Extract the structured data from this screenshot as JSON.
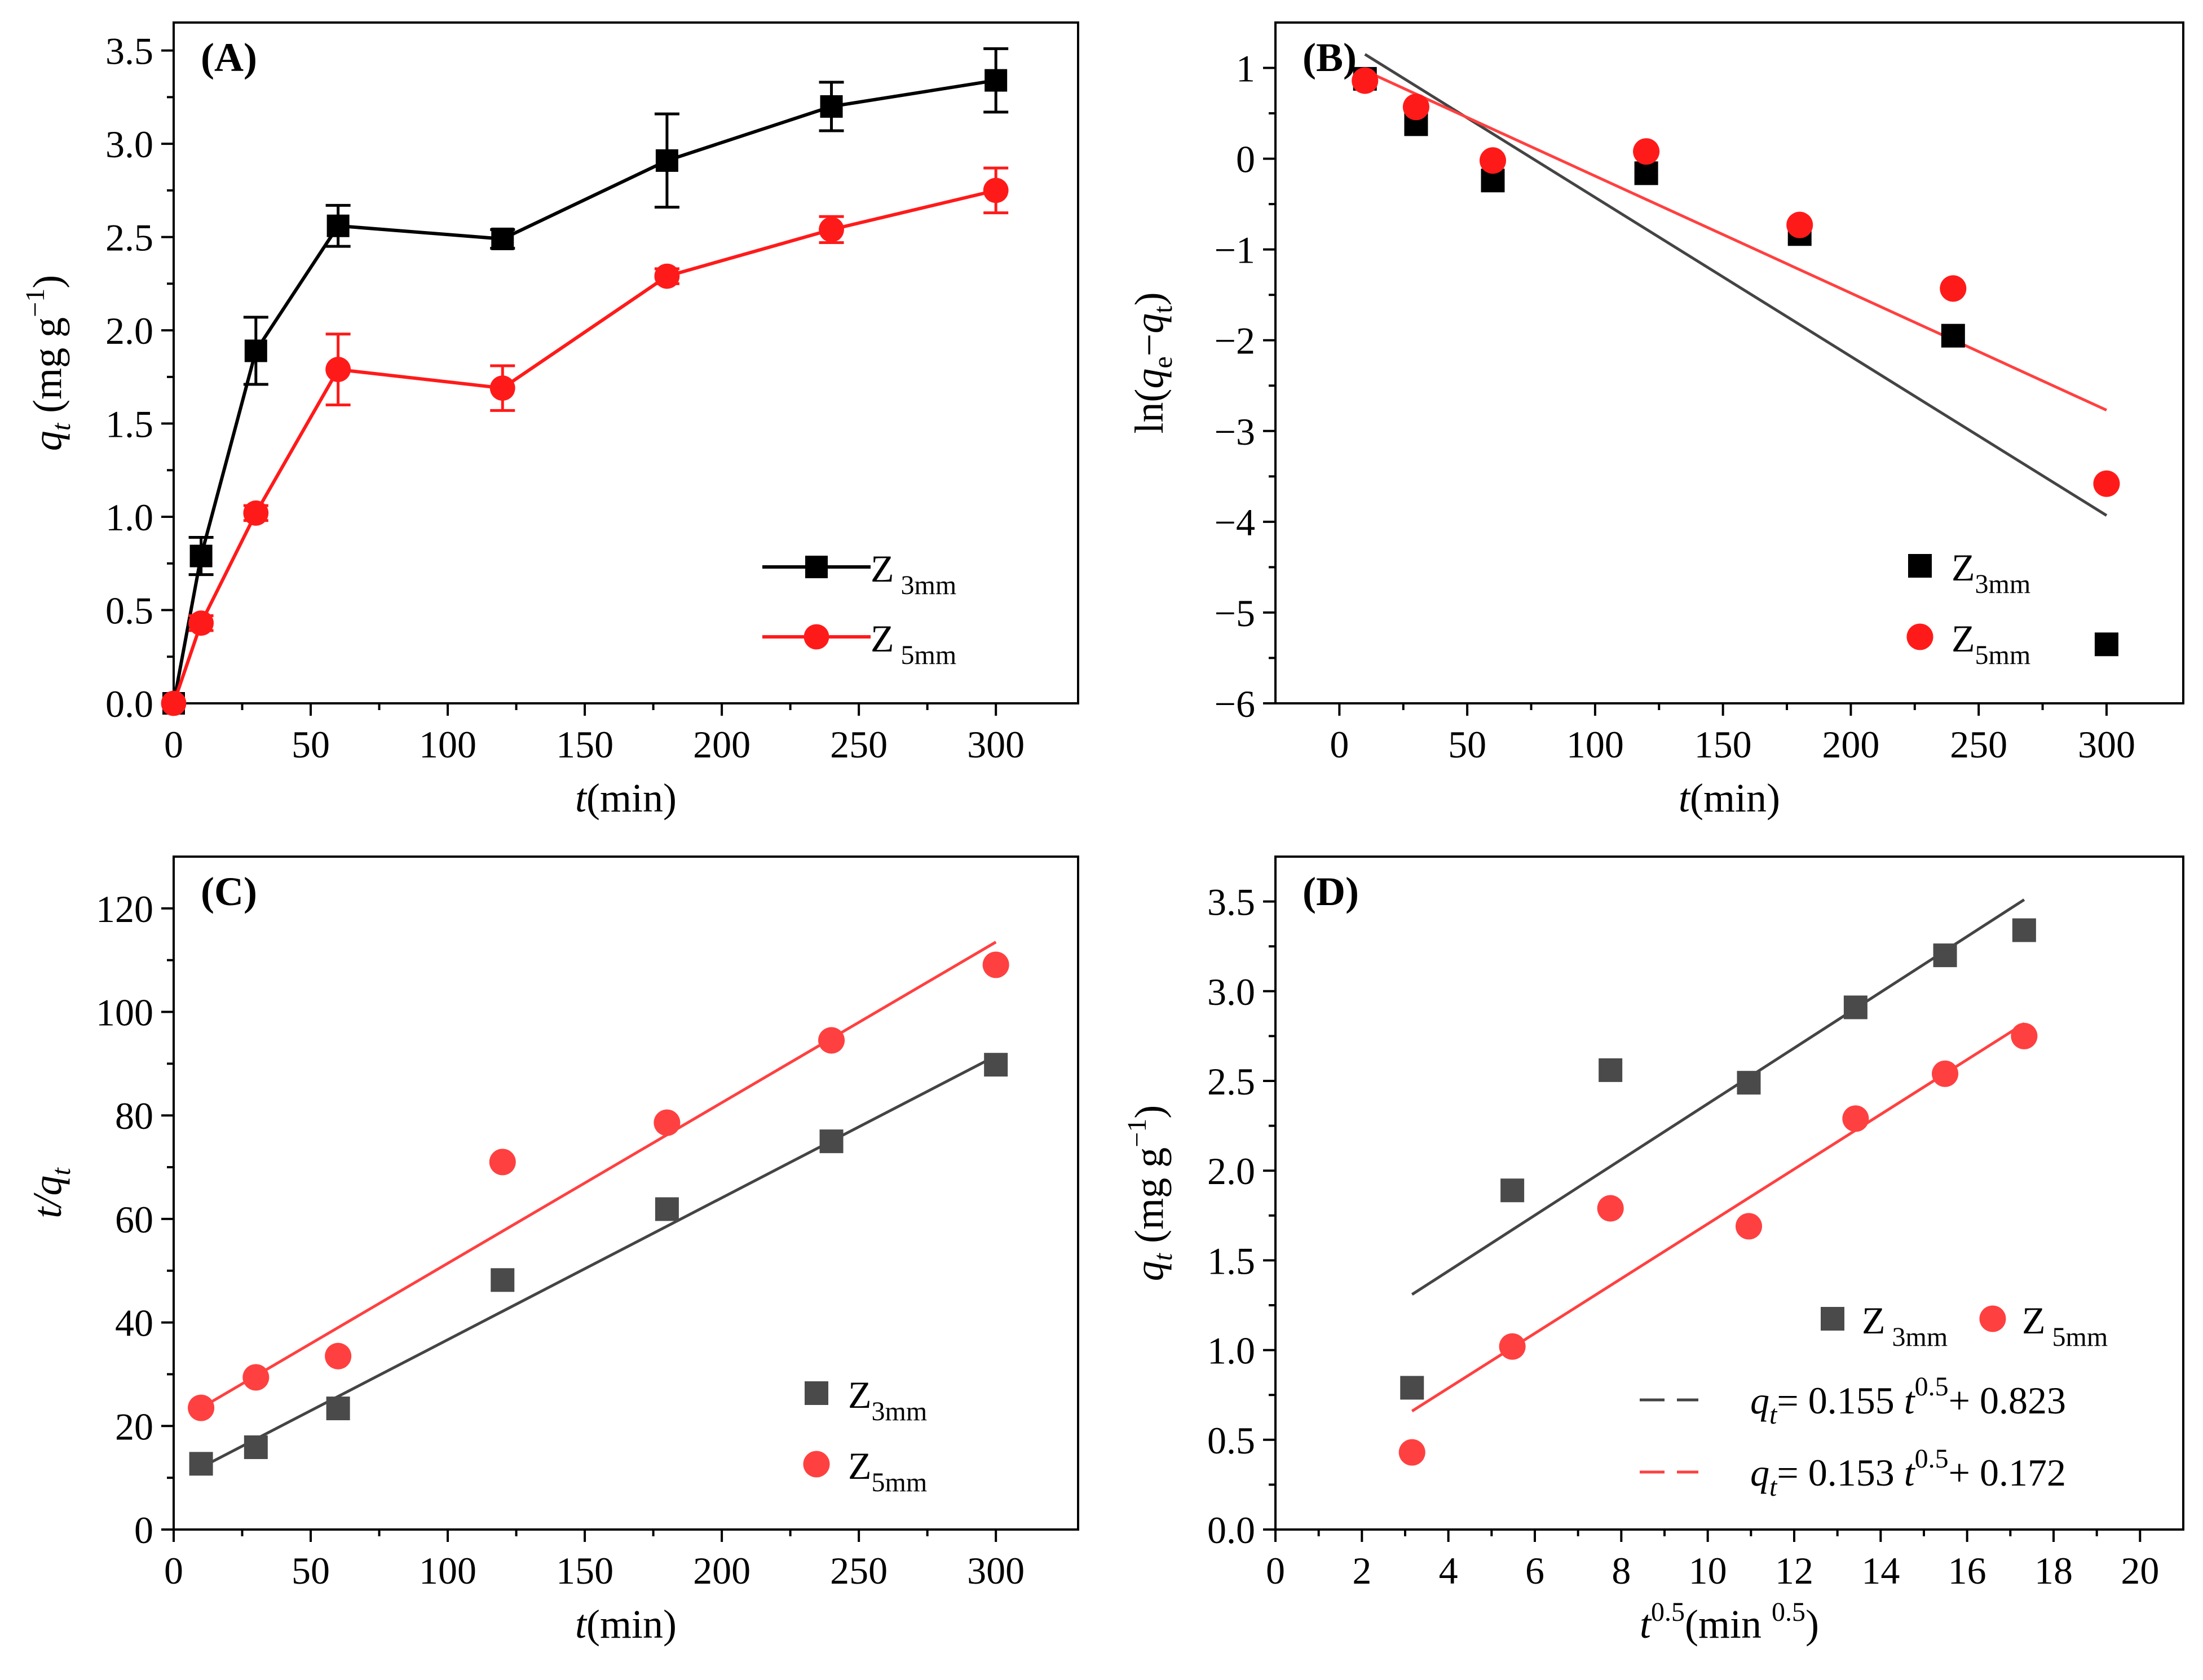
{
  "colors": {
    "black": "#000000",
    "dark": "#444444",
    "red": "#ff1a1a",
    "redLine": "#ff4040",
    "grayMarker": "#4a4a4a"
  },
  "chart_data": [
    {
      "id": "A",
      "panel_label": "(A)",
      "type": "line",
      "xlabel": {
        "italic": "t",
        "rest": "(min)"
      },
      "ylabel": {
        "italic": "q",
        "sub": "t",
        "rest": " (mg g",
        "sup": "−1",
        "close": ")"
      },
      "xlim": [
        0,
        330
      ],
      "ylim": [
        0,
        3.65
      ],
      "xticks": [
        0,
        50,
        100,
        150,
        200,
        250,
        300
      ],
      "xtick_labels": [
        "0",
        "50",
        "100",
        "150",
        "200",
        "250",
        "300"
      ],
      "yticks": [
        0,
        0.5,
        1.0,
        1.5,
        2.0,
        2.5,
        3.0,
        3.5
      ],
      "ytick_labels": [
        "0.0",
        "0.5",
        "1.0",
        "1.5",
        "2.0",
        "2.5",
        "3.0",
        "3.5"
      ],
      "series": [
        {
          "name": "Z 3mm",
          "legend_main": "Z",
          "legend_sub": " 3mm",
          "marker": "square",
          "color": "#000000",
          "connect": true,
          "x": [
            0,
            10,
            30,
            60,
            120,
            180,
            240,
            300
          ],
          "y": [
            0,
            0.79,
            1.89,
            2.56,
            2.49,
            2.91,
            3.2,
            3.34
          ],
          "err": [
            0,
            0.1,
            0.18,
            0.11,
            0.05,
            0.25,
            0.13,
            0.17
          ]
        },
        {
          "name": "Z 5mm",
          "legend_main": "Z",
          "legend_sub": " 5mm",
          "marker": "circle",
          "color": "#ff1a1a",
          "connect": true,
          "x": [
            0,
            10,
            30,
            60,
            120,
            180,
            240,
            300
          ],
          "y": [
            0,
            0.43,
            1.02,
            1.79,
            1.69,
            2.29,
            2.54,
            2.75
          ],
          "err": [
            0,
            0.04,
            0.04,
            0.19,
            0.12,
            0.04,
            0.07,
            0.12
          ]
        }
      ],
      "legend": {
        "position": "bottom-right",
        "with_line": true
      }
    },
    {
      "id": "B",
      "panel_label": "(B)",
      "type": "scatter",
      "xlabel": {
        "italic": "t",
        "rest": "(min)"
      },
      "ylabel": {
        "ln": "ln(",
        "q1": "q",
        "sub1": "e",
        "mid": "−",
        "q2": "q",
        "sub2": "t",
        "close": ")"
      },
      "xlim": [
        -25,
        330
      ],
      "ylim": [
        -6,
        1.5
      ],
      "xticks": [
        0,
        50,
        100,
        150,
        200,
        250,
        300
      ],
      "xtick_labels": [
        "0",
        "50",
        "100",
        "150",
        "200",
        "250",
        "300"
      ],
      "yticks": [
        -6,
        -5,
        -4,
        -3,
        -2,
        -1,
        0,
        1
      ],
      "ytick_labels": [
        "−6",
        "−5",
        "−4",
        "−3",
        "−2",
        "−1",
        "0",
        "1"
      ],
      "series": [
        {
          "name": "Z3mm",
          "legend_main": "Z",
          "legend_sub": "3mm",
          "marker": "square",
          "color": "#000000",
          "x": [
            10,
            30,
            60,
            120,
            180,
            240,
            300
          ],
          "y": [
            0.88,
            0.38,
            -0.24,
            -0.16,
            -0.83,
            -1.95,
            -5.35
          ],
          "fit": {
            "x": [
              10,
              300
            ],
            "y": [
              1.15,
              -3.93
            ],
            "color": "#444444"
          }
        },
        {
          "name": "Z5mm",
          "legend_main": "Z",
          "legend_sub": "5mm",
          "marker": "circle",
          "color": "#ff1a1a",
          "x": [
            10,
            30,
            60,
            120,
            180,
            240,
            300
          ],
          "y": [
            0.86,
            0.57,
            -0.02,
            0.08,
            -0.73,
            -1.43,
            -3.58
          ],
          "fit": {
            "x": [
              10,
              300
            ],
            "y": [
              0.97,
              -2.77
            ],
            "color": "#ff4040"
          }
        }
      ],
      "legend": {
        "position": "bottom-right",
        "with_line": false
      }
    },
    {
      "id": "C",
      "panel_label": "(C)",
      "type": "scatter",
      "xlabel": {
        "italic": "t",
        "rest": "(min)"
      },
      "ylabel": {
        "pre": "t/",
        "q": "q",
        "sub": "t"
      },
      "xlim": [
        0,
        330
      ],
      "ylim": [
        0,
        130
      ],
      "xticks": [
        0,
        50,
        100,
        150,
        200,
        250,
        300
      ],
      "xtick_labels": [
        "0",
        "50",
        "100",
        "150",
        "200",
        "250",
        "300"
      ],
      "yticks": [
        0,
        20,
        40,
        60,
        80,
        100,
        120
      ],
      "ytick_labels": [
        "0",
        "20",
        "40",
        "60",
        "80",
        "100",
        "120"
      ],
      "series": [
        {
          "name": "Z3mm",
          "legend_main": "Z",
          "legend_sub": "3mm",
          "marker": "square",
          "color": "#4a4a4a",
          "x": [
            10,
            30,
            60,
            120,
            180,
            240,
            300
          ],
          "y": [
            12.7,
            15.9,
            23.4,
            48.2,
            61.9,
            75.0,
            89.8
          ],
          "fit": {
            "x": [
              10,
              300
            ],
            "y": [
              12.0,
              91.5
            ],
            "color": "#444444"
          }
        },
        {
          "name": "Z5mm",
          "legend_main": "Z",
          "legend_sub": "5mm",
          "marker": "circle",
          "color": "#ff4040",
          "x": [
            10,
            30,
            60,
            120,
            180,
            240,
            300
          ],
          "y": [
            23.5,
            29.4,
            33.5,
            71.0,
            78.6,
            94.5,
            109.1
          ],
          "fit": {
            "x": [
              10,
              300
            ],
            "y": [
              23.5,
              113.5
            ],
            "color": "#ff4040"
          }
        }
      ],
      "legend": {
        "position": "bottom-right",
        "with_line": false
      }
    },
    {
      "id": "D",
      "panel_label": "(D)",
      "type": "scatter",
      "xlabel": {
        "pre": "t",
        "sup": "0.5",
        "rest": "(min ",
        "sup2": "0.5",
        "close": ")"
      },
      "ylabel": {
        "italic": "q",
        "sub": "t",
        "rest": " (mg g",
        "sup": "−1",
        "close": ")"
      },
      "xlim": [
        0,
        21
      ],
      "ylim": [
        0,
        3.75
      ],
      "xticks": [
        0,
        2,
        4,
        6,
        8,
        10,
        12,
        14,
        16,
        18,
        20
      ],
      "xtick_labels": [
        "0",
        "2",
        "4",
        "6",
        "8",
        "10",
        "12",
        "14",
        "16",
        "18",
        "20"
      ],
      "yticks": [
        0,
        0.5,
        1.0,
        1.5,
        2.0,
        2.5,
        3.0,
        3.5
      ],
      "ytick_labels": [
        "0.0",
        "0.5",
        "1.0",
        "1.5",
        "2.0",
        "2.5",
        "3.0",
        "3.5"
      ],
      "series": [
        {
          "name": "Z 3mm",
          "legend_main": "Z",
          "legend_sub": " 3mm",
          "marker": "square",
          "color": "#4a4a4a",
          "x": [
            3.16,
            5.48,
            7.75,
            10.95,
            13.42,
            15.49,
            17.32
          ],
          "y": [
            0.79,
            1.89,
            2.56,
            2.49,
            2.91,
            3.2,
            3.34
          ],
          "fit": {
            "x": [
              3.16,
              17.32
            ],
            "y": [
              1.31,
              3.51
            ],
            "color": "#444444",
            "dash": false
          }
        },
        {
          "name": "Z 5mm",
          "legend_main": "Z",
          "legend_sub": " 5mm",
          "marker": "circle",
          "color": "#ff4040",
          "x": [
            3.16,
            5.48,
            7.75,
            10.95,
            13.42,
            15.49,
            17.32
          ],
          "y": [
            0.43,
            1.02,
            1.79,
            1.69,
            2.29,
            2.54,
            2.75
          ],
          "fit": {
            "x": [
              3.16,
              17.32
            ],
            "y": [
              0.66,
              2.82
            ],
            "color": "#ff4040",
            "dash": true
          }
        }
      ],
      "equations": [
        {
          "q": "q",
          "sub": "t",
          "eq": "= 0.155 ",
          "t": "t",
          "sup": "0.5",
          "tail": "+ 0.823",
          "color": "#444444"
        },
        {
          "q": "q",
          "sub": "t",
          "eq": "= 0.153 ",
          "t": "t",
          "sup": "0.5",
          "tail": "+ 0.172",
          "color": "#ff4040"
        }
      ],
      "legend": {
        "position": "right",
        "with_line": false
      }
    }
  ]
}
